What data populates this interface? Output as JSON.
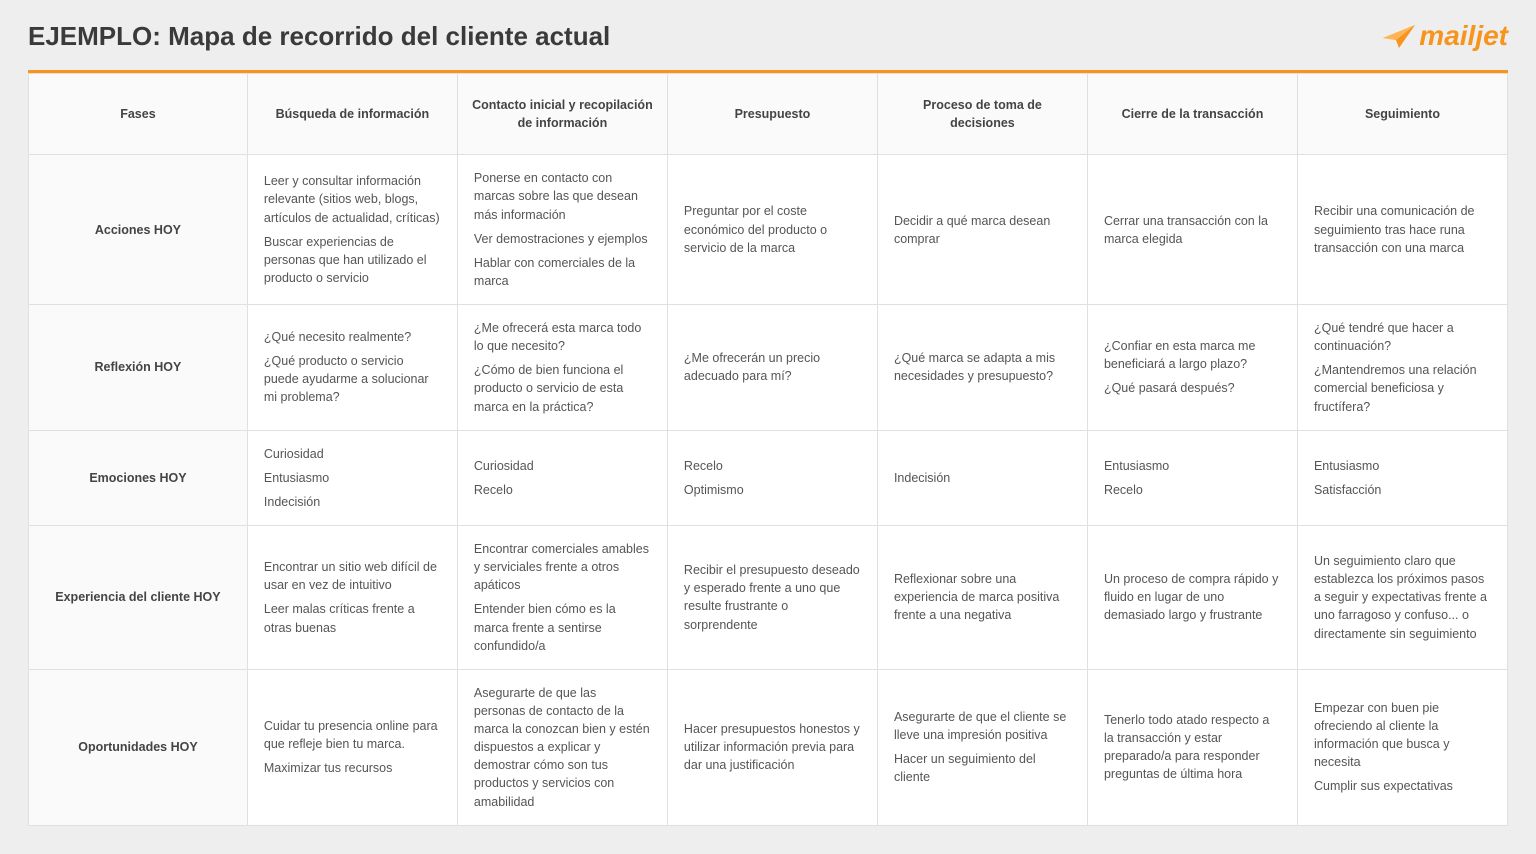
{
  "page_title": "EJEMPLO: Mapa de recorrido del cliente actual",
  "logo_text": "mailjet",
  "colors": {
    "accent": "#f7941d",
    "page_bg": "#eeeeee",
    "table_bg": "#ffffff",
    "header_bg": "#fafafa",
    "border": "#e0e0e0",
    "title_text": "#3a3a3a",
    "body_text": "#555555"
  },
  "columns": [
    "Fases",
    "Búsqueda de información",
    "Contacto inicial y recopilación de información",
    "Presupuesto",
    "Proceso de toma de decisiones",
    "Cierre de la transacción",
    "Seguimiento"
  ],
  "rows": [
    {
      "label": "Acciones HOY",
      "cells": [
        [
          "Leer y consultar información relevante (sitios web, blogs, artículos de actualidad, críticas)",
          "Buscar experiencias de personas que han utilizado el producto o servicio"
        ],
        [
          "Ponerse en contacto con marcas sobre las que desean más información",
          "Ver demostraciones y ejemplos",
          "Hablar con comerciales de la marca"
        ],
        [
          "Preguntar por el coste económico del producto o servicio de la marca"
        ],
        [
          "Decidir a qué marca desean comprar"
        ],
        [
          "Cerrar una transacción con la marca elegida"
        ],
        [
          "Recibir una comunicación de seguimiento tras hace runa transacción con una marca"
        ]
      ]
    },
    {
      "label": "Reflexión HOY",
      "cells": [
        [
          "¿Qué necesito realmente?",
          "¿Qué producto o servicio puede ayudarme a solucionar mi problema?"
        ],
        [
          "¿Me ofrecerá esta marca todo lo que necesito?",
          "¿Cómo de bien funciona el producto o servicio de esta marca en la práctica?"
        ],
        [
          "¿Me ofrecerán un precio adecuado para mí?"
        ],
        [
          "¿Qué marca se adapta a mis necesidades y presupuesto?"
        ],
        [
          "¿Confiar en esta marca me beneficiará a largo plazo?",
          "¿Qué pasará después?"
        ],
        [
          "¿Qué tendré que hacer a continuación?",
          "¿Mantendremos una relación comercial beneficiosa y fructífera?"
        ]
      ]
    },
    {
      "label": "Emociones HOY",
      "cells": [
        [
          "Curiosidad",
          "Entusiasmo",
          "Indecisión"
        ],
        [
          "Curiosidad",
          "Recelo"
        ],
        [
          "Recelo",
          "Optimismo"
        ],
        [
          "Indecisión"
        ],
        [
          "Entusiasmo",
          "Recelo"
        ],
        [
          "Entusiasmo",
          "Satisfacción"
        ]
      ]
    },
    {
      "label": "Experiencia del cliente HOY",
      "cells": [
        [
          "Encontrar un sitio web difícil de usar en vez de intuitivo",
          "Leer malas críticas frente a otras buenas"
        ],
        [
          "Encontrar comerciales amables y serviciales frente a otros apáticos",
          "Entender bien cómo es la marca frente a sentirse confundido/a"
        ],
        [
          "Recibir el presupuesto deseado y esperado frente a uno que resulte frustrante o sorprendente"
        ],
        [
          "Reflexionar sobre una experiencia de marca positiva frente a una negativa"
        ],
        [
          "Un proceso de compra rápido y fluido en lugar de uno demasiado largo y frustrante"
        ],
        [
          "Un seguimiento claro que establezca los próximos pasos a seguir y expectativas frente a uno farragoso y confuso... o directamente sin seguimiento"
        ]
      ]
    },
    {
      "label": "Oportunidades HOY",
      "cells": [
        [
          "Cuidar tu presencia online para que refleje bien tu marca.",
          "Maximizar tus recursos"
        ],
        [
          "Asegurarte de que las personas de contacto de la marca la conozcan bien y estén dispuestos a explicar y demostrar cómo son tus productos y servicios con amabilidad"
        ],
        [
          "Hacer presupuestos honestos y utilizar información previa para dar una justificación"
        ],
        [
          "Asegurarte de que el cliente se lleve una impresión positiva",
          "Hacer un seguimiento del cliente"
        ],
        [
          "Tenerlo todo atado respecto a la transacción y estar preparado/a para responder preguntas de última hora"
        ],
        [
          "Empezar con buen pie ofreciendo al cliente la información que busca y necesita",
          "Cumplir sus expectativas"
        ]
      ]
    }
  ]
}
